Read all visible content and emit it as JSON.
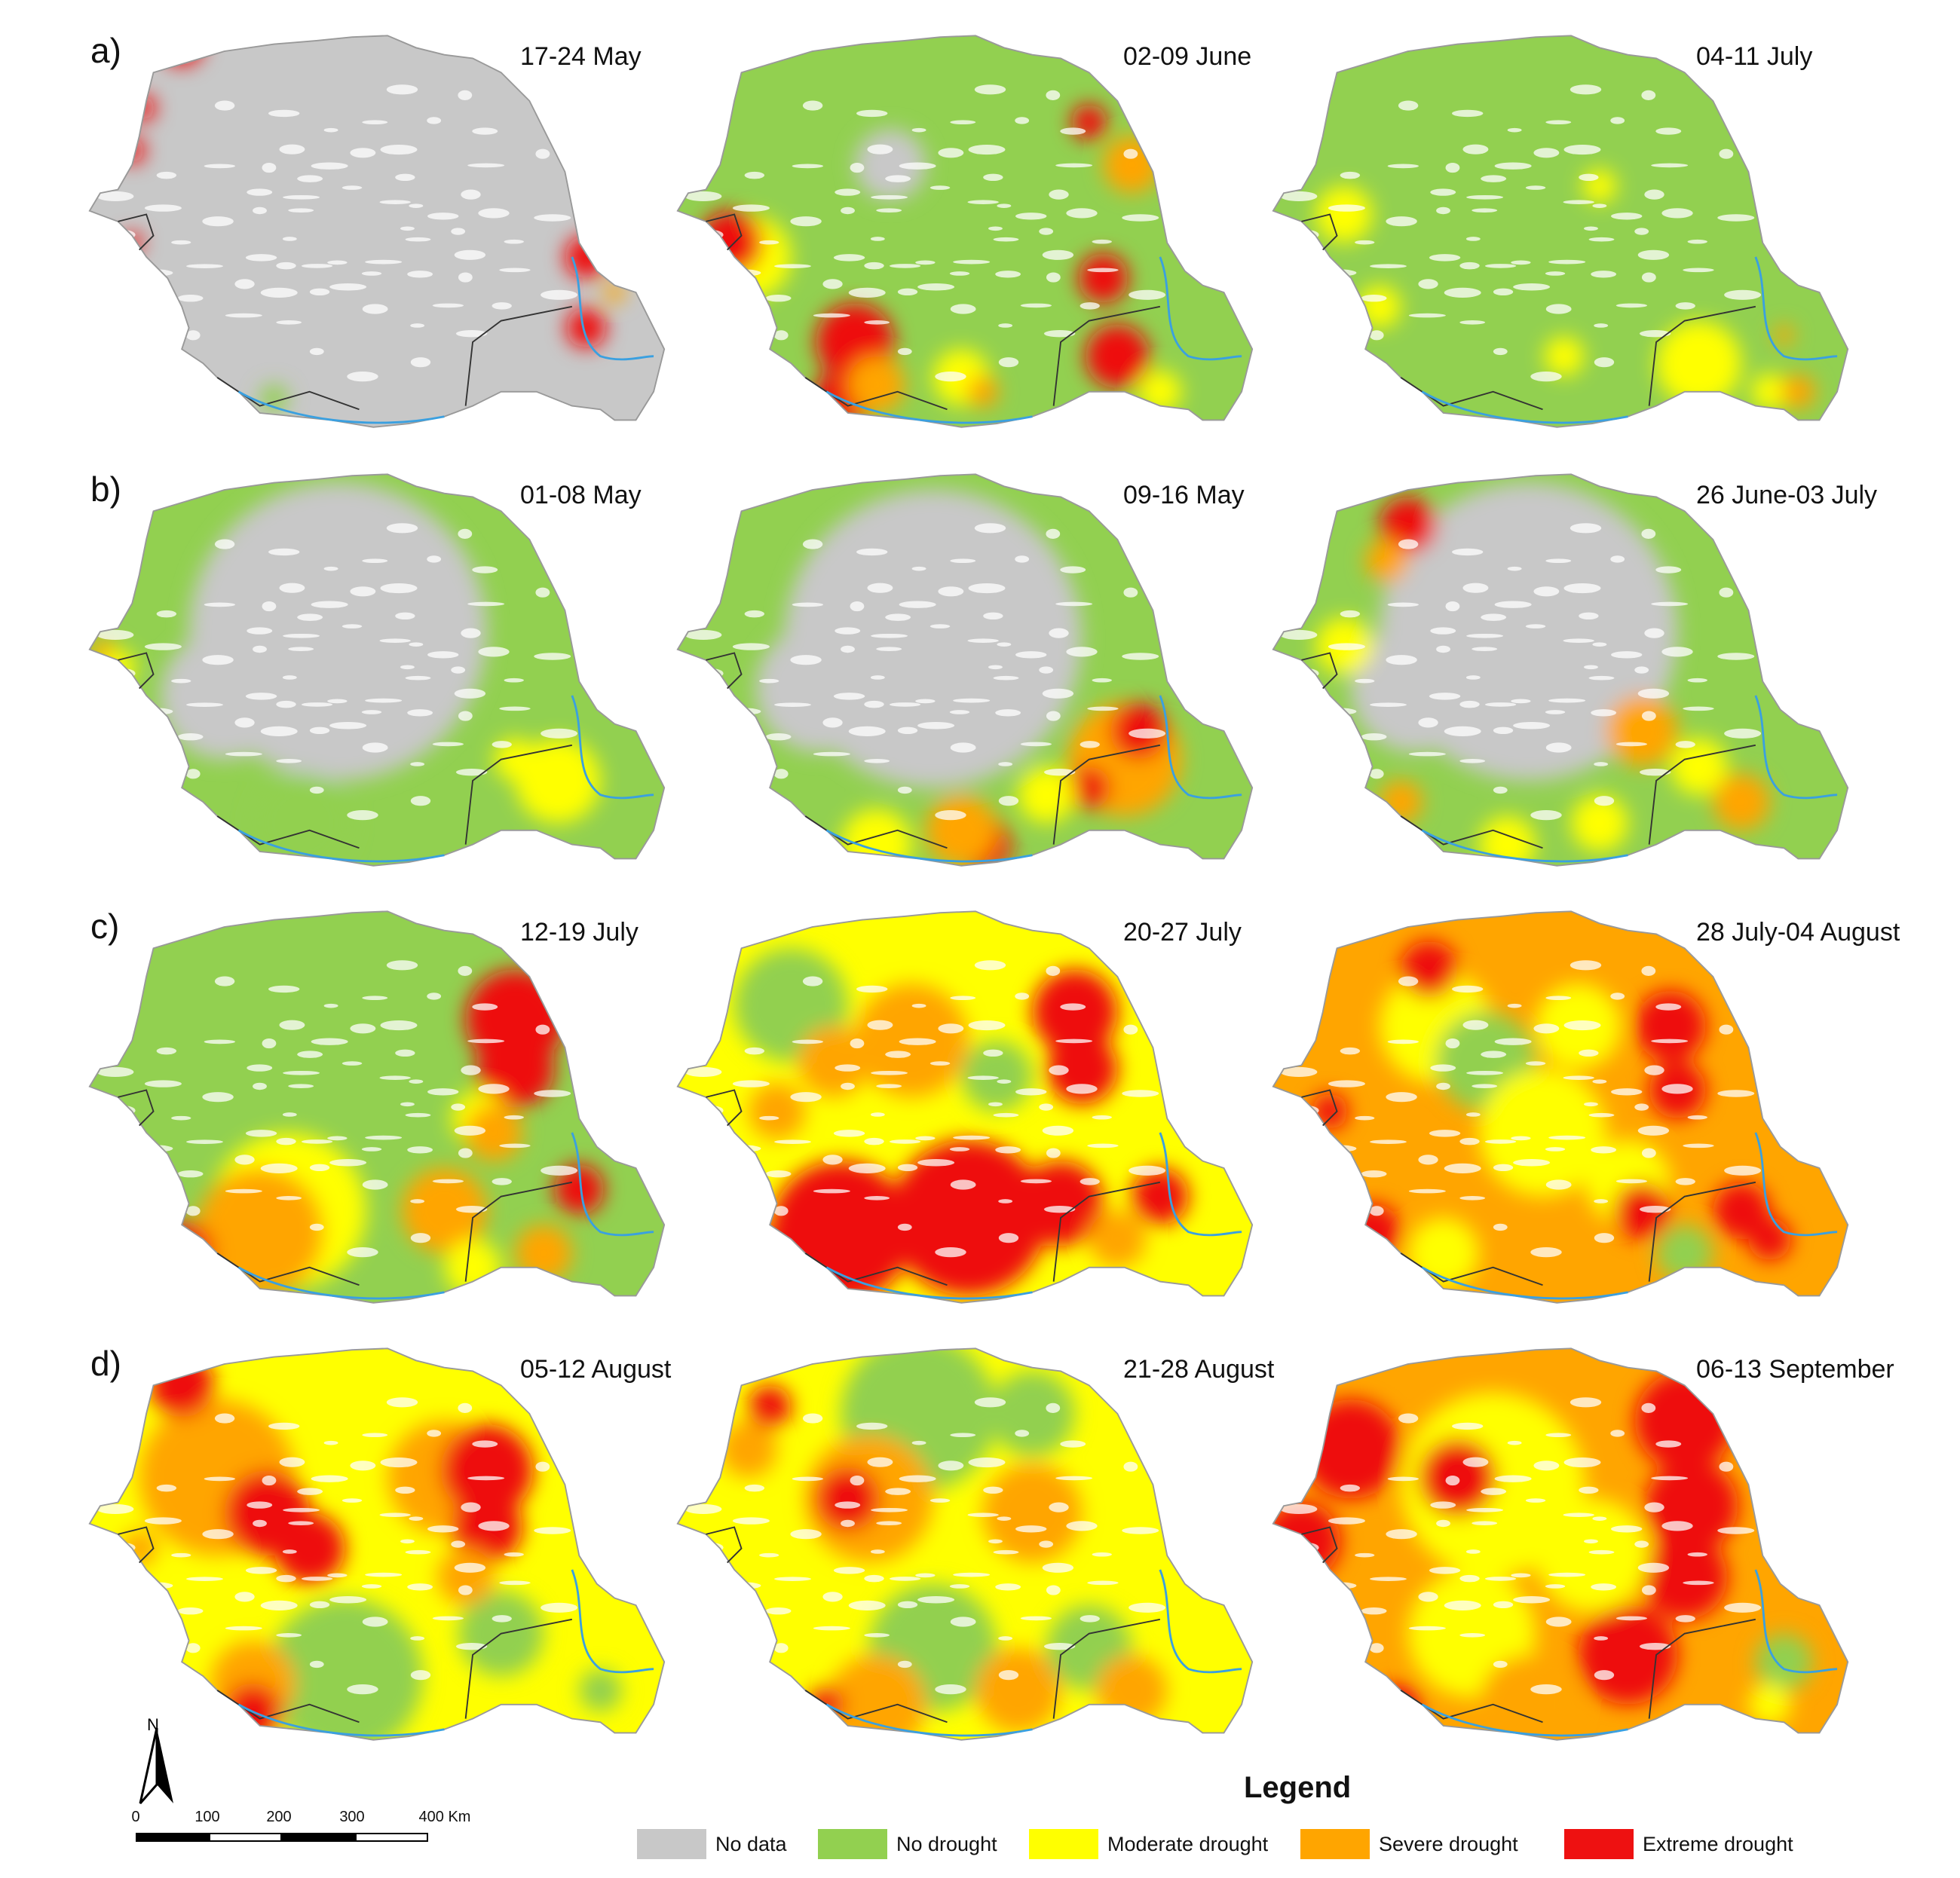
{
  "rows": [
    {
      "label": "a)",
      "maps": [
        "17-24 May",
        "02-09 June",
        "04-11 July"
      ]
    },
    {
      "label": "b)",
      "maps": [
        "01-08 May",
        "09-16 May",
        "26 June-03 July"
      ]
    },
    {
      "label": "c)",
      "maps": [
        "12-19 July",
        "20-27 July",
        "28 July-04 August"
      ]
    },
    {
      "label": "d)",
      "maps": [
        "05-12 August",
        "21-28 August",
        "06-13 September"
      ]
    }
  ],
  "map_states": [
    [
      "nodata-red",
      "mixed-green-red",
      "green-yellow"
    ],
    [
      "nodata-green",
      "nodata-green-orange",
      "nodata-green-yellow"
    ],
    [
      "green-red-east",
      "red-south-east",
      "orange-red"
    ],
    [
      "yellow-red",
      "yellow-orange",
      "red-ring"
    ]
  ],
  "north": {
    "label": "N",
    "icon": "north-arrow-icon"
  },
  "scale": {
    "ticks": [
      "0",
      "100",
      "200",
      "300",
      "400 Km"
    ]
  },
  "legend": {
    "title": "Legend",
    "items": [
      {
        "label": "No data",
        "color": "#c8c8c8"
      },
      {
        "label": "No drought",
        "color": "#92d050"
      },
      {
        "label": "Moderate drought",
        "color": "#ffff00"
      },
      {
        "label": "Severe drought",
        "color": "#ffa500"
      },
      {
        "label": "Extreme drought",
        "color": "#ee1111"
      }
    ]
  },
  "colors": {
    "nodata": "#c8c8c8",
    "green": "#92d050",
    "yellow": "#ffff00",
    "orange": "#ffa500",
    "red": "#ee1111",
    "border": "#333333",
    "water": "#3aa0e0"
  }
}
